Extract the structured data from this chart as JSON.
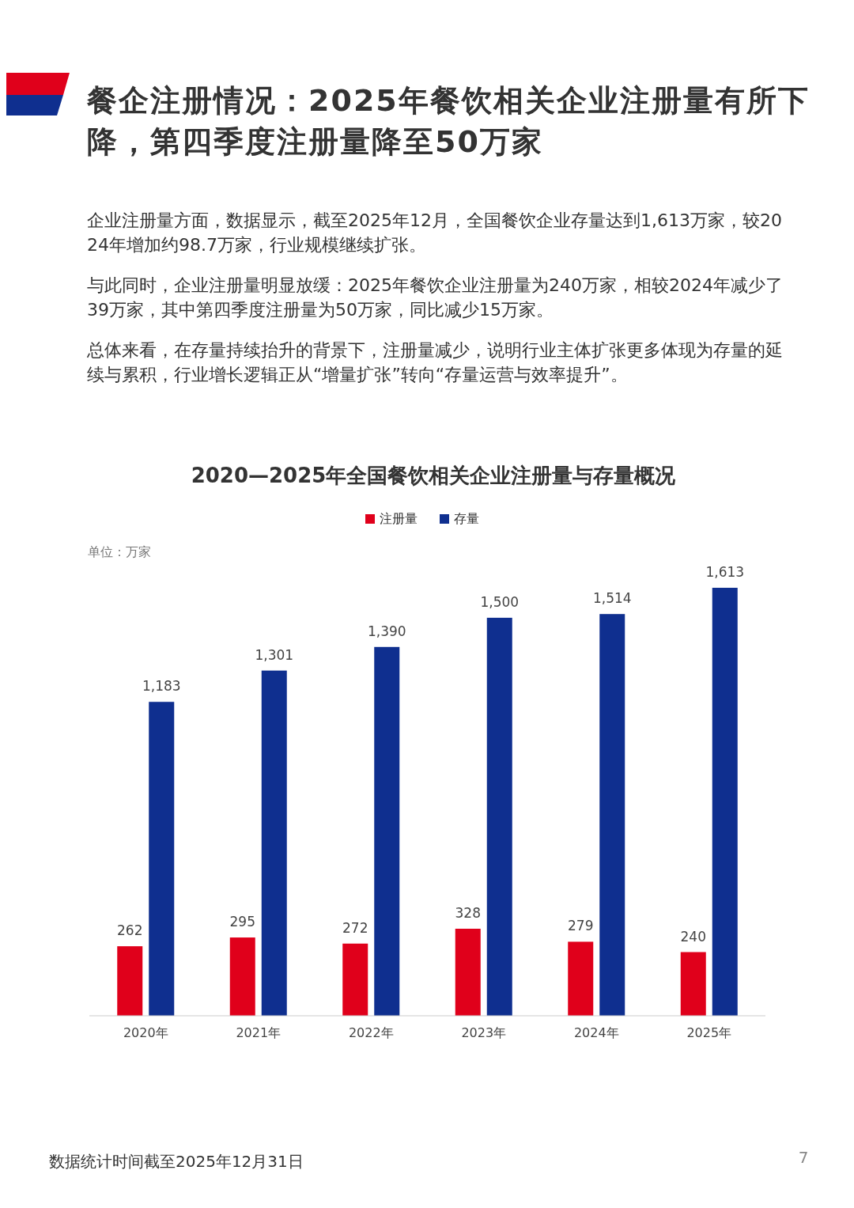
{
  "chart_data": {
    "type": "bar",
    "title": "餐企注册情况：2025年餐饮相关企业注册量有所下降，第四季度注册量降至50万家",
    "subtitle": "2020—2025年全国餐饮相关企业注册量与存量概况",
    "ylabel": "单位：万家",
    "categories": [
      "2020年",
      "2021年",
      "2022年",
      "2023年",
      "2024年",
      "2025年"
    ],
    "series": [
      {
        "name": "注册量",
        "color": "#e0001b",
        "values": [
          262,
          295,
          272,
          328,
          279,
          240
        ],
        "value_labels": [
          "262",
          "295",
          "272",
          "328",
          "279",
          "240"
        ]
      },
      {
        "name": "存量",
        "color": "#0f2f8f",
        "values": [
          1183,
          1301,
          1390,
          1500,
          1514,
          1613
        ],
        "value_labels": [
          "1,183",
          "1,301",
          "1,390",
          "1,500",
          "1,514",
          "1,613"
        ]
      }
    ],
    "legend": "top",
    "grid": false,
    "annotations": [
      "企业注册量方面，数据显示，截至2025年12月，全国餐饮企业存量达到1,613万家，较2024年增加约98.7万家，行业规模继续扩张。",
      "与此同时，企业注册量明显放缓：2025年餐饮企业注册量为240万家，相较2024年减少了39万家，其中第四季度注册量为50万家，同比减少15万家。",
      "总体来看，在存量持续抬升的背景下，注册量减少，说明行业主体扩张更多体现为存量的延续与累积，行业增长逻辑正从“增量扩张”转向“存量运营与效率提升”。",
      "数据统计时间截至2025年12月31日",
      "7"
    ]
  }
}
